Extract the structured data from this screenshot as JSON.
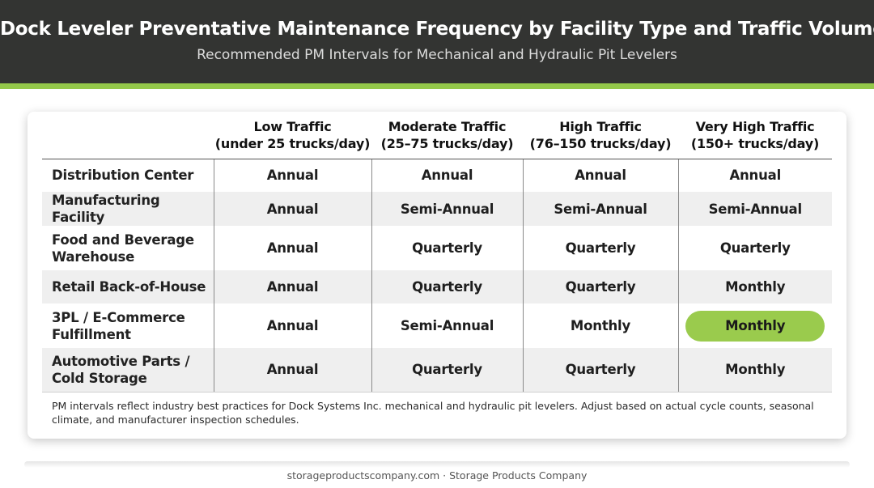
{
  "header": {
    "title": "Dock Leveler Preventative Maintenance Frequency by Facility Type and Traffic Volume",
    "subtitle": "Recommended PM Intervals for Mechanical and Hydraulic Pit Levelers"
  },
  "table": {
    "columns": [
      {
        "line1": "",
        "line2": ""
      },
      {
        "line1": "Low Traffic",
        "line2": "(under 25 trucks/day)"
      },
      {
        "line1": "Moderate Traffic",
        "line2": "(25–75 trucks/day)"
      },
      {
        "line1": "High Traffic",
        "line2": "(76–150 trucks/day)"
      },
      {
        "line1": "Very High Traffic",
        "line2": "(150+ trucks/day)"
      }
    ],
    "rows": [
      {
        "facility": "Distribution Center",
        "low": "Annual",
        "moderate": "Annual",
        "high": "Annual",
        "very_high": "Annual"
      },
      {
        "facility": "Manufacturing Facility",
        "low": "Annual",
        "moderate": "Semi-Annual",
        "high": "Semi-Annual",
        "very_high": "Semi-Annual"
      },
      {
        "facility": "Food and Beverage Warehouse",
        "low": "Annual",
        "moderate": "Quarterly",
        "high": "Quarterly",
        "very_high": "Quarterly"
      },
      {
        "facility": "Retail Back-of-House",
        "low": "Annual",
        "moderate": "Quarterly",
        "high": "Quarterly",
        "very_high": "Monthly"
      },
      {
        "facility": "3PL / E-Commerce Fulfillment",
        "low": "Annual",
        "moderate": "Semi-Annual",
        "high": "Monthly",
        "very_high": "Monthly"
      },
      {
        "facility": "Automotive Parts / Cold Storage",
        "low": "Annual",
        "moderate": "Quarterly",
        "high": "Quarterly",
        "very_high": "Monthly"
      }
    ],
    "highlight": {
      "row": 4,
      "column": "very_high",
      "color": "#9acb4d"
    }
  },
  "footnote": "PM intervals reflect industry best practices for Dock Systems Inc. mechanical and hydraulic pit levelers. Adjust based on actual cycle counts, seasonal climate, and manufacturer inspection schedules.",
  "credit": "storageproductscompany.com · Storage Products Company",
  "colors": {
    "header_bg": "#333432",
    "accent": "#94c84a",
    "highlight_pill": "#9acb4d"
  }
}
